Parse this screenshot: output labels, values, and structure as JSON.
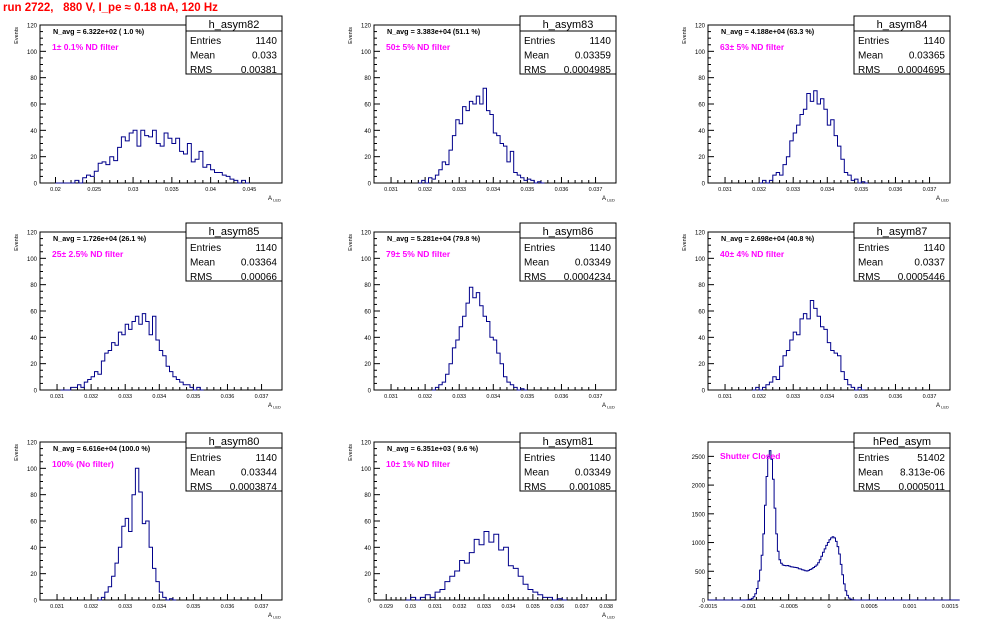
{
  "page_title": "run 2722,   880 V, I_pe ≈ 0.18 nA, 120 Hz",
  "colors": {
    "title": "#ff0000",
    "histogram": "#00008b",
    "annotation": "#ff00ff",
    "frame": "#000000",
    "background": "#ffffff"
  },
  "chart_data": [
    {
      "type": "histogram",
      "histogram_name": "h_asym82",
      "stats": [
        [
          "Entries",
          "1140"
        ],
        [
          "Mean",
          "0.033"
        ],
        [
          "RMS",
          "0.00381"
        ]
      ],
      "navg_label": "N_avg = 6.322e+02 ( 1.0 %)",
      "filter_label": "1± 0.1% ND filter",
      "ylabel": "Events",
      "xlabel": "A",
      "ylim": [
        0,
        120
      ],
      "yticks": [
        0,
        20,
        40,
        60,
        80,
        100,
        120
      ],
      "xlim": [
        0.018,
        0.0492
      ],
      "xticks": [
        0.02,
        0.025,
        0.03,
        0.035,
        0.04,
        0.045
      ],
      "xtick_labels": [
        "0.02",
        "0.025",
        "0.03",
        "0.035",
        "0.04",
        "0.045"
      ],
      "x_start": 0.02,
      "bin_width": 0.0005,
      "values": [
        0,
        0,
        0,
        0,
        0,
        2,
        0,
        4,
        6,
        5,
        9,
        15,
        16,
        14,
        20,
        17,
        27,
        35,
        32,
        38,
        40,
        28,
        40,
        36,
        35,
        40,
        30,
        28,
        38,
        34,
        30,
        34,
        24,
        22,
        30,
        16,
        18,
        24,
        12,
        14,
        10,
        8,
        8,
        6,
        5,
        3,
        2,
        0,
        2,
        0
      ]
    },
    {
      "type": "histogram",
      "histogram_name": "h_asym83",
      "stats": [
        [
          "Entries",
          "1140"
        ],
        [
          "Mean",
          "0.03359"
        ],
        [
          "RMS",
          "0.0004985"
        ]
      ],
      "navg_label": "N_avg = 3.383e+04 (51.1 %)",
      "filter_label": "50± 5% ND filter",
      "ylabel": "Events",
      "xlabel": "A",
      "ylim": [
        0,
        120
      ],
      "yticks": [
        0,
        20,
        40,
        60,
        80,
        100,
        120
      ],
      "xlim": [
        0.0305,
        0.0376
      ],
      "xticks": [
        0.031,
        0.032,
        0.033,
        0.034,
        0.035,
        0.036,
        0.037
      ],
      "xtick_labels": [
        "0.031",
        "0.032",
        "0.033",
        "0.034",
        "0.035",
        "0.036",
        "0.037"
      ],
      "x_start": 0.0318,
      "bin_width": 0.0001,
      "values": [
        0,
        2,
        0,
        4,
        3,
        6,
        10,
        16,
        14,
        25,
        36,
        48,
        45,
        58,
        55,
        62,
        60,
        66,
        60,
        72,
        55,
        52,
        38,
        36,
        30,
        28,
        16,
        24,
        8,
        6,
        4,
        2,
        3,
        2,
        0,
        1,
        0
      ]
    },
    {
      "type": "histogram",
      "histogram_name": "h_asym84",
      "stats": [
        [
          "Entries",
          "1140"
        ],
        [
          "Mean",
          "0.03365"
        ],
        [
          "RMS",
          "0.0004695"
        ]
      ],
      "navg_label": "N_avg = 4.188e+04 (63.3 %)",
      "filter_label": "63± 5% ND filter",
      "ylabel": "Events",
      "xlabel": "A",
      "ylim": [
        0,
        120
      ],
      "yticks": [
        0,
        20,
        40,
        60,
        80,
        100,
        120
      ],
      "xlim": [
        0.0305,
        0.0376
      ],
      "xticks": [
        0.031,
        0.032,
        0.033,
        0.034,
        0.035,
        0.036,
        0.037
      ],
      "xtick_labels": [
        "0.031",
        "0.032",
        "0.033",
        "0.034",
        "0.035",
        "0.036",
        "0.037"
      ],
      "x_start": 0.032,
      "bin_width": 0.0001,
      "values": [
        0,
        2,
        0,
        2,
        6,
        8,
        6,
        14,
        20,
        32,
        38,
        44,
        52,
        56,
        68,
        62,
        70,
        60,
        64,
        56,
        44,
        48,
        36,
        28,
        18,
        8,
        6,
        2,
        3,
        0,
        1,
        0
      ]
    },
    {
      "type": "histogram",
      "histogram_name": "h_asym85",
      "stats": [
        [
          "Entries",
          "1140"
        ],
        [
          "Mean",
          "0.03364"
        ],
        [
          "RMS",
          "0.00066"
        ]
      ],
      "navg_label": "N_avg = 1.726e+04 (26.1 %)",
      "filter_label": "25± 2.5% ND filter",
      "ylabel": "Events",
      "xlabel": "A",
      "ylim": [
        0,
        120
      ],
      "yticks": [
        0,
        20,
        40,
        60,
        80,
        100,
        120
      ],
      "xlim": [
        0.0305,
        0.0376
      ],
      "xticks": [
        0.031,
        0.032,
        0.033,
        0.034,
        0.035,
        0.036,
        0.037
      ],
      "xtick_labels": [
        "0.031",
        "0.032",
        "0.033",
        "0.034",
        "0.035",
        "0.036",
        "0.037"
      ],
      "x_start": 0.0311,
      "bin_width": 0.0001,
      "values": [
        0,
        0,
        0,
        2,
        2,
        4,
        2,
        6,
        8,
        10,
        14,
        12,
        22,
        28,
        30,
        36,
        34,
        44,
        42,
        50,
        46,
        52,
        56,
        50,
        58,
        52,
        42,
        56,
        38,
        30,
        26,
        18,
        14,
        10,
        8,
        6,
        4,
        4,
        2,
        0,
        2,
        0
      ]
    },
    {
      "type": "histogram",
      "histogram_name": "h_asym86",
      "stats": [
        [
          "Entries",
          "1140"
        ],
        [
          "Mean",
          "0.03349"
        ],
        [
          "RMS",
          "0.0004234"
        ]
      ],
      "navg_label": "N_avg = 5.281e+04 (79.8 %)",
      "filter_label": "79± 5% ND filter",
      "ylabel": "Events",
      "xlabel": "A",
      "ylim": [
        0,
        120
      ],
      "yticks": [
        0,
        20,
        40,
        60,
        80,
        100,
        120
      ],
      "xlim": [
        0.0305,
        0.0376
      ],
      "xticks": [
        0.031,
        0.032,
        0.033,
        0.034,
        0.035,
        0.036,
        0.037
      ],
      "xtick_labels": [
        "0.031",
        "0.032",
        "0.033",
        "0.034",
        "0.035",
        "0.036",
        "0.037"
      ],
      "x_start": 0.0322,
      "bin_width": 0.0001,
      "values": [
        0,
        2,
        4,
        6,
        12,
        20,
        32,
        38,
        48,
        56,
        66,
        78,
        70,
        74,
        64,
        56,
        52,
        40,
        38,
        28,
        20,
        10,
        6,
        4,
        2,
        0,
        1,
        0
      ]
    },
    {
      "type": "histogram",
      "histogram_name": "h_asym87",
      "stats": [
        [
          "Entries",
          "1140"
        ],
        [
          "Mean",
          "0.0337"
        ],
        [
          "RMS",
          "0.0005446"
        ]
      ],
      "navg_label": "N_avg = 2.698e+04 (40.8 %)",
      "filter_label": "40± 4% ND filter",
      "ylabel": "Events",
      "xlabel": "A",
      "ylim": [
        0,
        120
      ],
      "yticks": [
        0,
        20,
        40,
        60,
        80,
        100,
        120
      ],
      "xlim": [
        0.0305,
        0.0376
      ],
      "xticks": [
        0.031,
        0.032,
        0.033,
        0.034,
        0.035,
        0.036,
        0.037
      ],
      "xtick_labels": [
        "0.031",
        "0.032",
        "0.033",
        "0.034",
        "0.035",
        "0.036",
        "0.037"
      ],
      "x_start": 0.0318,
      "bin_width": 0.0001,
      "values": [
        0,
        2,
        0,
        2,
        4,
        6,
        10,
        8,
        18,
        26,
        30,
        38,
        44,
        42,
        54,
        58,
        54,
        68,
        62,
        56,
        48,
        46,
        36,
        30,
        28,
        26,
        14,
        8,
        4,
        2,
        0,
        2,
        0
      ]
    },
    {
      "type": "histogram",
      "histogram_name": "h_asym80",
      "stats": [
        [
          "Entries",
          "1140"
        ],
        [
          "Mean",
          "0.03344"
        ],
        [
          "RMS",
          "0.0003874"
        ]
      ],
      "navg_label": "N_avg = 6.616e+04 (100.0 %)",
      "filter_label": "100% (No filter)",
      "ylabel": "Events",
      "xlabel": "A",
      "ylim": [
        0,
        120
      ],
      "yticks": [
        0,
        20,
        40,
        60,
        80,
        100,
        120
      ],
      "xlim": [
        0.0305,
        0.0376
      ],
      "xticks": [
        0.031,
        0.032,
        0.033,
        0.034,
        0.035,
        0.036,
        0.037
      ],
      "xtick_labels": [
        "0.031",
        "0.032",
        "0.033",
        "0.034",
        "0.035",
        "0.036",
        "0.037"
      ],
      "x_start": 0.0322,
      "bin_width": 0.0001,
      "values": [
        0,
        2,
        6,
        10,
        18,
        28,
        40,
        56,
        62,
        52,
        80,
        100,
        82,
        58,
        60,
        40,
        24,
        14,
        6,
        2,
        0,
        1,
        0
      ]
    },
    {
      "type": "histogram",
      "histogram_name": "h_asym81",
      "stats": [
        [
          "Entries",
          "1140"
        ],
        [
          "Mean",
          "0.03349"
        ],
        [
          "RMS",
          "0.001085"
        ]
      ],
      "navg_label": "N_avg = 6.351e+03 ( 9.6 %)",
      "filter_label": "10± 1% ND filter",
      "ylabel": "Events",
      "xlabel": "A",
      "ylim": [
        0,
        120
      ],
      "yticks": [
        0,
        20,
        40,
        60,
        80,
        100,
        120
      ],
      "xlim": [
        0.0285,
        0.0384
      ],
      "xticks": [
        0.029,
        0.03,
        0.031,
        0.032,
        0.033,
        0.034,
        0.035,
        0.036,
        0.037,
        0.038
      ],
      "xtick_labels": [
        "0.029",
        "0.03",
        "0.031",
        "0.032",
        "0.033",
        "0.034",
        "0.035",
        "0.036",
        "0.037",
        "0.038"
      ],
      "x_start": 0.0298,
      "bin_width": 0.0002,
      "values": [
        0,
        2,
        0,
        2,
        4,
        2,
        6,
        8,
        14,
        18,
        22,
        30,
        28,
        36,
        46,
        42,
        52,
        44,
        50,
        38,
        40,
        26,
        24,
        18,
        12,
        8,
        6,
        4,
        2,
        2,
        0,
        1,
        0
      ]
    },
    {
      "type": "histogram",
      "histogram_name": "hPed_asym",
      "stats": [
        [
          "Entries",
          "51402"
        ],
        [
          "Mean",
          "8.313e-06"
        ],
        [
          "RMS",
          "0.0005011"
        ]
      ],
      "filter_label": "Shutter Closed",
      "ylabel": "",
      "xlabel": "",
      "ylim": [
        0,
        2750
      ],
      "yticks": [
        0,
        500,
        1000,
        1500,
        2000,
        2500
      ],
      "xlim": [
        -0.0015,
        0.0015
      ],
      "xticks": [
        -0.0015,
        -0.001,
        -0.0005,
        0,
        0.0005,
        0.001,
        0.0015
      ],
      "xtick_labels": [
        "-0.0015",
        "-0.001",
        "-0.0005",
        "0",
        "0.0005",
        "0.001",
        "0.0015"
      ],
      "x_start": -0.0015,
      "bin_width": 2e-05,
      "values": [
        0,
        0,
        0,
        0,
        0,
        0,
        0,
        0,
        0,
        0,
        0,
        0,
        0,
        0,
        0,
        0,
        0,
        0,
        0,
        0,
        0,
        0,
        0,
        0,
        2,
        5,
        12,
        28,
        55,
        110,
        200,
        330,
        520,
        780,
        1150,
        1650,
        2150,
        2500,
        2600,
        2450,
        2100,
        1600,
        1150,
        850,
        700,
        640,
        610,
        600,
        595,
        600,
        590,
        580,
        575,
        570,
        565,
        560,
        545,
        540,
        525,
        520,
        510,
        505,
        515,
        530,
        545,
        565,
        585,
        610,
        650,
        700,
        760,
        830,
        890,
        950,
        1000,
        1050,
        1080,
        1100,
        1080,
        1020,
        930,
        800,
        620,
        440,
        280,
        160,
        80,
        35,
        15,
        5,
        2,
        0,
        0,
        0,
        0,
        0,
        0,
        0,
        0,
        0,
        0,
        0,
        0,
        0,
        0,
        0,
        0,
        0,
        0,
        0,
        0,
        0,
        0,
        0,
        0,
        0,
        0,
        0,
        0,
        0,
        0,
        0,
        0,
        0,
        0,
        0,
        0,
        0,
        0,
        0,
        0,
        0,
        0,
        0,
        0,
        0,
        0,
        0,
        0,
        0,
        0,
        0,
        0,
        0,
        0,
        0,
        0,
        0,
        0,
        0,
        0,
        0,
        0,
        0,
        0,
        0
      ]
    }
  ]
}
